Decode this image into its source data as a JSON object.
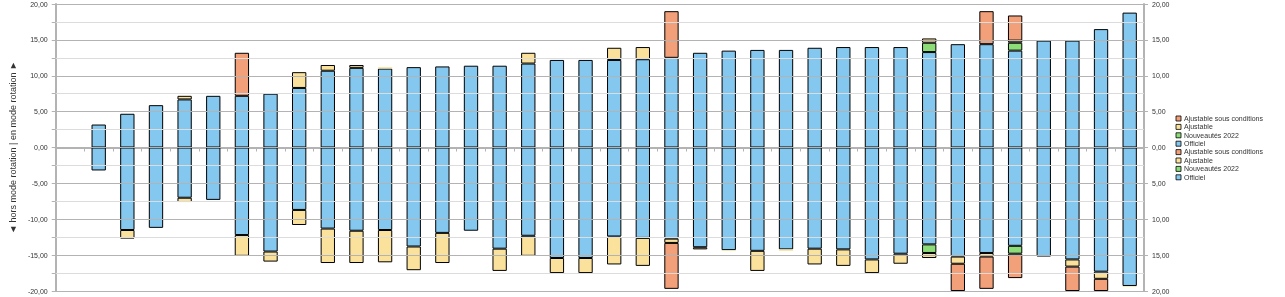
{
  "chart_data": {
    "type": "bar",
    "stacked": true,
    "ylabel": "◄ hors mode rotation | en mode rotation ►",
    "categories": [
      null,
      null,
      null,
      null,
      null,
      null,
      null,
      null,
      null,
      null,
      null,
      null,
      null,
      null,
      null,
      null,
      null,
      null,
      null,
      null,
      null,
      null,
      null,
      null,
      null,
      null,
      null,
      null,
      null,
      null,
      null,
      null,
      null,
      null,
      null,
      null,
      null,
      null
    ],
    "series": [
      {
        "name": "Officiel",
        "color": "#84c8ef",
        "values": [
          null,
          3.2,
          4.7,
          5.9,
          6.7,
          7.2,
          7.2,
          7.5,
          8.3,
          10.7,
          11.1,
          11.0,
          11.2,
          11.3,
          11.4,
          11.4,
          11.7,
          12.2,
          12.2,
          12.2,
          12.3,
          12.5,
          13.2,
          13.5,
          13.6,
          13.6,
          13.9,
          14.0,
          14.0,
          14.0,
          13.3,
          14.4,
          14.4,
          13.5,
          14.9,
          14.9,
          16.5,
          18.8
        ]
      },
      {
        "name": "Nouveautés 2022",
        "color": "#8cdc78",
        "values": [
          null,
          null,
          null,
          null,
          null,
          null,
          null,
          null,
          null,
          null,
          null,
          null,
          null,
          null,
          null,
          null,
          null,
          null,
          null,
          null,
          null,
          null,
          null,
          null,
          null,
          null,
          null,
          null,
          null,
          null,
          1.3,
          null,
          null,
          1.1,
          null,
          null,
          null,
          null
        ]
      },
      {
        "name": "Ajustable",
        "color": "#fbe29c",
        "values": [
          null,
          null,
          null,
          null,
          0.5,
          null,
          null,
          null,
          2.2,
          0.8,
          0.4,
          0.2,
          null,
          null,
          null,
          null,
          1.5,
          null,
          null,
          1.7,
          1.7,
          null,
          null,
          null,
          null,
          null,
          null,
          null,
          null,
          null,
          0.6,
          null,
          null,
          0.3,
          null,
          null,
          null,
          null
        ]
      },
      {
        "name": "Ajustable sous conditions",
        "color": "#f2a07a",
        "values": [
          null,
          null,
          null,
          null,
          null,
          null,
          6.0,
          null,
          null,
          null,
          null,
          null,
          null,
          null,
          null,
          null,
          null,
          null,
          null,
          null,
          null,
          6.5,
          null,
          null,
          null,
          null,
          null,
          null,
          null,
          null,
          null,
          null,
          4.6,
          3.5,
          null,
          null,
          null,
          null
        ]
      },
      {
        "name": "Officiel",
        "color": "#84c8ef",
        "values": [
          null,
          -3.2,
          -11.5,
          -11.2,
          -7.0,
          -7.3,
          -12.2,
          -14.5,
          -8.7,
          -11.3,
          -11.6,
          -11.5,
          -13.8,
          -11.9,
          -11.6,
          -14.1,
          -12.3,
          -15.4,
          -15.4,
          -12.4,
          -12.6,
          -12.7,
          -13.9,
          -14.3,
          -14.4,
          -14.2,
          -14.1,
          -14.2,
          -15.6,
          -14.8,
          -13.5,
          -15.2,
          -14.7,
          -13.7,
          -15.2,
          -15.6,
          -17.3,
          -19.3
        ]
      },
      {
        "name": "Nouveautés 2022",
        "color": "#8cdc78",
        "values": [
          null,
          null,
          null,
          null,
          null,
          null,
          null,
          null,
          null,
          null,
          null,
          null,
          null,
          null,
          null,
          null,
          null,
          null,
          null,
          null,
          null,
          null,
          null,
          null,
          null,
          null,
          null,
          null,
          null,
          null,
          -1.2,
          null,
          null,
          -1.1,
          null,
          null,
          null,
          null
        ]
      },
      {
        "name": "Ajustable",
        "color": "#fbe29c",
        "values": [
          null,
          null,
          -1.2,
          null,
          -0.6,
          null,
          -2.9,
          -1.4,
          -2.1,
          -4.8,
          -4.5,
          -4.5,
          -3.3,
          -4.2,
          null,
          -3.1,
          -2.8,
          -2.1,
          -2.1,
          -3.9,
          -3.9,
          -0.6,
          -0.3,
          -0.1,
          -2.8,
          -0.2,
          -2.2,
          -2.3,
          -1.9,
          -1.4,
          -0.7,
          -1.0,
          -0.5,
          null,
          null,
          -1.0,
          -1.0,
          -0.1
        ]
      },
      {
        "name": "Ajustable sous conditions",
        "color": "#f2a07a",
        "values": [
          null,
          null,
          null,
          null,
          null,
          null,
          null,
          null,
          null,
          null,
          null,
          null,
          null,
          null,
          null,
          null,
          null,
          null,
          null,
          null,
          null,
          -6.4,
          null,
          null,
          null,
          null,
          null,
          null,
          null,
          null,
          null,
          -3.8,
          -4.5,
          -3.4,
          null,
          -3.4,
          -1.7,
          null
        ]
      }
    ],
    "ylim": [
      -20,
      20
    ],
    "yticks": [
      {
        "value": -20,
        "label": "-20,00"
      },
      {
        "value": -17.5,
        "label": null
      },
      {
        "value": -15,
        "label": "-15,00"
      },
      {
        "value": -12.5,
        "label": null
      },
      {
        "value": -10,
        "label": "-10,00"
      },
      {
        "value": -7.5,
        "label": null
      },
      {
        "value": -5,
        "label": "-5,00"
      },
      {
        "value": -2.5,
        "label": null
      },
      {
        "value": 0,
        "label": "0,00"
      },
      {
        "value": 2.5,
        "label": null
      },
      {
        "value": 5,
        "label": "5,00"
      },
      {
        "value": 7.5,
        "label": null
      },
      {
        "value": 10,
        "label": "10,00"
      },
      {
        "value": 12.5,
        "label": null
      },
      {
        "value": 15,
        "label": "15,00"
      },
      {
        "value": 17.5,
        "label": null
      },
      {
        "value": 20,
        "label": "20,00"
      }
    ],
    "y2lim": [
      -20,
      20
    ],
    "y2ticks": [
      {
        "value": -20,
        "label": "20,00"
      },
      {
        "value": -15,
        "label": "15,00"
      },
      {
        "value": -10,
        "label": "10,00"
      },
      {
        "value": -5,
        "label": "5,00"
      },
      {
        "value": 0,
        "label": "0,00"
      },
      {
        "value": 5,
        "label": "5,00"
      },
      {
        "value": 10,
        "label": "10,00"
      },
      {
        "value": 15,
        "label": "15,00"
      },
      {
        "value": 20,
        "label": "20,00"
      }
    ],
    "grid": "y",
    "legend": "right",
    "tick_labels": "y"
  }
}
